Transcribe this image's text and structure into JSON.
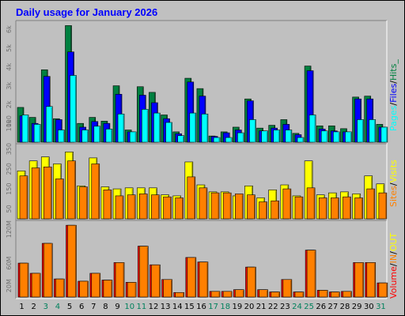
{
  "title": "Daily usage for January 2026",
  "colors": {
    "background": "#c0c0c0",
    "panel": "#c0c0c0",
    "title": "#0000ff",
    "hits": "#008040",
    "files": "#0000ff",
    "pages": "#00ffff",
    "visits": "#ffff00",
    "sites": "#ff8000",
    "volume": "#ff0000",
    "in": "#ff8000",
    "out": "#ffff00",
    "weekday": "#000000",
    "weekend": "#00805c"
  },
  "chart_data": [
    {
      "type": "bar",
      "title": "Daily usage for January 2026",
      "legend": [
        "Pages",
        "Files",
        "Hits"
      ],
      "legend_separator": "/",
      "legend_trailer": "_",
      "yticks": [
        "6k",
        "5k",
        "4k",
        "3k",
        "2k",
        "1k",
        "1000"
      ],
      "yticks_display": [
        "6k",
        "5k",
        "4k",
        "3k",
        "2k",
        "1k",
        "1000"
      ],
      "ylim": [
        0,
        6300
      ],
      "categories": [
        "1",
        "2",
        "3",
        "4",
        "5",
        "6",
        "7",
        "8",
        "9",
        "10",
        "11",
        "12",
        "13",
        "14",
        "15",
        "16",
        "17",
        "18",
        "19",
        "20",
        "21",
        "22",
        "23",
        "24",
        "25",
        "26",
        "27",
        "28",
        "29",
        "30",
        "31"
      ],
      "weekend_days": [
        "3",
        "4",
        "10",
        "11",
        "17",
        "18",
        "24",
        "25",
        "31"
      ],
      "series": [
        {
          "name": "Hits",
          "values": [
            1850,
            1320,
            3850,
            1250,
            6200,
            1000,
            1320,
            1120,
            3000,
            650,
            2950,
            2650,
            1450,
            550,
            3400,
            2850,
            330,
            550,
            800,
            2300,
            750,
            900,
            1200,
            470,
            4050,
            870,
            870,
            720,
            2400,
            2450,
            950
          ]
        },
        {
          "name": "Files",
          "values": [
            1400,
            1000,
            3500,
            1200,
            4800,
            800,
            1100,
            1000,
            2550,
            550,
            2500,
            2100,
            1250,
            450,
            3200,
            2450,
            310,
            500,
            650,
            2200,
            600,
            750,
            950,
            400,
            3800,
            700,
            600,
            550,
            2300,
            2300,
            800
          ]
        },
        {
          "name": "Pages",
          "values": [
            1450,
            950,
            1900,
            650,
            3550,
            650,
            850,
            700,
            1500,
            550,
            1750,
            1550,
            1050,
            350,
            1550,
            1500,
            250,
            250,
            500,
            1200,
            600,
            650,
            650,
            250,
            1450,
            600,
            550,
            550,
            1200,
            1200,
            800
          ]
        }
      ]
    },
    {
      "type": "bar",
      "legend": [
        "Sites",
        "Visits"
      ],
      "legend_separator": "/",
      "yticks": [
        "350",
        "250",
        "150",
        "50"
      ],
      "ylim": [
        0,
        360
      ],
      "series": [
        {
          "name": "Visits",
          "values": [
            240,
            290,
            310,
            275,
            335,
            165,
            305,
            160,
            150,
            155,
            155,
            155,
            120,
            115,
            285,
            170,
            135,
            135,
            115,
            165,
            105,
            145,
            170,
            115,
            290,
            120,
            130,
            135,
            125,
            215,
            175
          ]
        },
        {
          "name": "Sites",
          "values": [
            215,
            255,
            260,
            200,
            290,
            160,
            275,
            145,
            115,
            120,
            125,
            120,
            110,
            105,
            210,
            155,
            130,
            130,
            125,
            120,
            85,
            90,
            150,
            110,
            155,
            105,
            105,
            110,
            105,
            150,
            130
          ]
        }
      ]
    },
    {
      "type": "bar",
      "legend": [
        "Volume",
        "IN",
        "OUT"
      ],
      "legend_separator": "/",
      "yticks": [
        "120M",
        "60M",
        "20M"
      ],
      "ylim": [
        0,
        130
      ],
      "series": [
        {
          "name": "Volume",
          "values": [
            60,
            42,
            95,
            32,
            127,
            28,
            42,
            30,
            61,
            26,
            90,
            57,
            31,
            8,
            70,
            62,
            10,
            10,
            13,
            53,
            13,
            9,
            31,
            9,
            83,
            12,
            9,
            10,
            61,
            61,
            25
          ]
        },
        {
          "name": "IN",
          "values": [
            60,
            42,
            95,
            32,
            127,
            28,
            42,
            30,
            61,
            26,
            90,
            57,
            31,
            8,
            70,
            62,
            10,
            10,
            13,
            53,
            13,
            9,
            31,
            9,
            83,
            12,
            9,
            10,
            61,
            61,
            25
          ]
        }
      ]
    }
  ]
}
